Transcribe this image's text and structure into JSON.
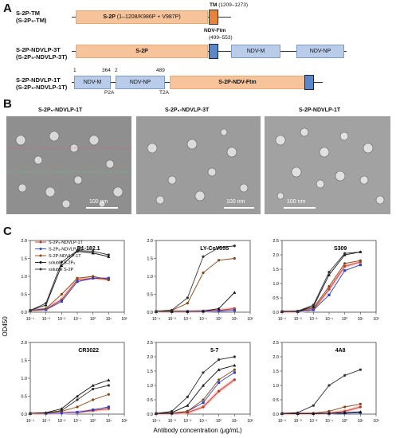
{
  "panelA": {
    "letter": "A",
    "c1": {
      "l1": "S-2P-TM",
      "l2": "(S-2P₅-TM)",
      "s2p": "S-2P",
      "s2p_detail": "(1–1208/K986P + V987P)",
      "tm": "TM",
      "tm_range": "(1209–1273)"
    },
    "c2": {
      "l1": "S-2P-NDVLP-3T",
      "l2": "(S-2P₅-NDVLP-3T)",
      "s2p": "S-2P",
      "ftm": "NDV-Ftm",
      "ftm_range": "(499–553)",
      "m": "NDV-M",
      "np": "NDV-NP"
    },
    "c3": {
      "l1": "S-2P-NDVLP-1T",
      "l2": "(S-2P₅-NDVLP-1T)",
      "n1": "1",
      "n364": "364",
      "n2": "2",
      "n489": "489",
      "m": "NDV-M",
      "np": "NDV-NP",
      "s2pftm": "S-2P-NDV-Ftm",
      "p2a": "P2A",
      "t2a": "T2A"
    }
  },
  "panelB": {
    "letter": "B",
    "titles": [
      "S-2P₅-NDVLP-1T",
      "S-2P₅-NDVLP-3T",
      "S-2P-NDVLP-1T"
    ],
    "scale": "100 nm"
  },
  "panelC": {
    "letter": "C",
    "ylabel": "OD450",
    "xlabel": "Antibody concentration (μg/mL)",
    "legend": [
      "S-2P₅-NDVLP-1T",
      "S-2P₅-NDVLP-3T",
      "S-2P-NDVLP-1T",
      "soluble S-2P₅",
      "soluble S-2P"
    ],
    "colors": {
      "red": "#c0392b",
      "blue": "#2b3fd1",
      "brown": "#8b4513",
      "black1": "#111111",
      "black2": "#333333",
      "shade": "#f6c9c9"
    }
  },
  "chart_data": [
    {
      "type": "line",
      "title": "B1-182.1",
      "x": [
        0.0001,
        0.001,
        0.01,
        0.1,
        1,
        10
      ],
      "ylim": [
        0,
        2
      ],
      "yticks": [
        "0.0",
        "0.5",
        "1.0",
        "1.5",
        "2.0"
      ],
      "xticks": [
        "10⁻⁴",
        "10⁻³",
        "10⁻²",
        "10⁻¹",
        "10⁰",
        "10¹",
        "10²"
      ],
      "series": [
        {
          "name": "S-2P₅-NDVLP-1T",
          "color": "red",
          "values": [
            0.05,
            0.08,
            0.35,
            0.9,
            0.95,
            0.92
          ]
        },
        {
          "name": "S-2P₅-NDVLP-3T",
          "color": "blue",
          "values": [
            0.05,
            0.07,
            0.3,
            0.85,
            0.95,
            0.95
          ]
        },
        {
          "name": "S-2P-NDVLP-1T",
          "color": "brown",
          "values": [
            0.05,
            0.1,
            0.5,
            0.95,
            1.0,
            0.9
          ]
        },
        {
          "name": "soluble S-2P₅",
          "color": "black1",
          "values": [
            0.05,
            0.2,
            1.3,
            1.7,
            1.65,
            1.55
          ]
        },
        {
          "name": "soluble S-2P",
          "color": "black2",
          "values": [
            0.05,
            0.25,
            1.4,
            1.72,
            1.7,
            1.6
          ]
        }
      ]
    },
    {
      "type": "line",
      "title": "LY-CoV555",
      "x": [
        0.0001,
        0.001,
        0.01,
        0.1,
        1,
        10
      ],
      "ylim": [
        0,
        2
      ],
      "yticks": [
        "0.0",
        "0.5",
        "1.0",
        "1.5",
        "2.0"
      ],
      "xticks": [
        "10⁻⁴",
        "10⁻³",
        "10⁻²",
        "10⁻¹",
        "10⁰",
        "10¹",
        "10²"
      ],
      "series": [
        {
          "name": "S-2P₅-NDVLP-1T",
          "color": "red",
          "values": [
            0.02,
            0.02,
            0.02,
            0.03,
            0.05,
            0.1
          ]
        },
        {
          "name": "S-2P₅-NDVLP-3T",
          "color": "blue",
          "values": [
            0.02,
            0.02,
            0.02,
            0.02,
            0.03,
            0.05
          ]
        },
        {
          "name": "S-2P-NDVLP-1T",
          "color": "brown",
          "values": [
            0.02,
            0.05,
            0.25,
            1.1,
            1.45,
            1.5
          ]
        },
        {
          "name": "soluble S-2P₅",
          "color": "black1",
          "values": [
            0.02,
            0.02,
            0.02,
            0.03,
            0.1,
            0.55
          ]
        },
        {
          "name": "soluble S-2P",
          "color": "black2",
          "values": [
            0.02,
            0.06,
            0.4,
            1.55,
            1.8,
            1.85
          ]
        }
      ]
    },
    {
      "type": "line",
      "title": "S309",
      "x": [
        0.0001,
        0.001,
        0.01,
        0.1,
        1,
        10
      ],
      "ylim": [
        0,
        2.5
      ],
      "yticks": [
        "0.0",
        "0.5",
        "1.0",
        "1.5",
        "2.0",
        "2.5"
      ],
      "xticks": [
        "10⁻⁴",
        "10⁻³",
        "10⁻²",
        "10⁻¹",
        "10⁰",
        "10¹",
        "10²"
      ],
      "series": [
        {
          "name": "S-2P₅-NDVLP-1T",
          "color": "red",
          "values": [
            0.02,
            0.02,
            0.1,
            0.8,
            1.6,
            1.75
          ]
        },
        {
          "name": "S-2P₅-NDVLP-3T",
          "color": "blue",
          "values": [
            0.02,
            0.02,
            0.08,
            0.6,
            1.45,
            1.65
          ]
        },
        {
          "name": "S-2P-NDVLP-1T",
          "color": "brown",
          "values": [
            0.02,
            0.03,
            0.15,
            0.9,
            1.7,
            1.8
          ]
        },
        {
          "name": "soluble S-2P₅",
          "color": "black1",
          "values": [
            0.02,
            0.03,
            0.2,
            1.3,
            2.0,
            2.1
          ]
        },
        {
          "name": "soluble S-2P",
          "color": "black2",
          "values": [
            0.02,
            0.04,
            0.25,
            1.4,
            2.05,
            2.1
          ]
        }
      ]
    },
    {
      "type": "line",
      "title": "CR3022",
      "x": [
        0.0001,
        0.001,
        0.01,
        0.1,
        1,
        10
      ],
      "ylim": [
        0,
        2
      ],
      "yticks": [
        "0.0",
        "0.5",
        "1.0",
        "1.5",
        "2.0"
      ],
      "xticks": [
        "10⁻⁴",
        "10⁻³",
        "10⁻²",
        "10⁻¹",
        "10⁰",
        "10¹",
        "10²"
      ],
      "series": [
        {
          "name": "S-2P₅-NDVLP-1T",
          "color": "red",
          "values": [
            0.02,
            0.02,
            0.03,
            0.05,
            0.1,
            0.15
          ]
        },
        {
          "name": "S-2P₅-NDVLP-3T",
          "color": "blue",
          "values": [
            0.02,
            0.02,
            0.03,
            0.05,
            0.12,
            0.2
          ]
        },
        {
          "name": "S-2P-NDVLP-1T",
          "color": "brown",
          "values": [
            0.02,
            0.03,
            0.08,
            0.2,
            0.4,
            0.55
          ]
        },
        {
          "name": "soluble S-2P₅",
          "color": "black1",
          "values": [
            0.02,
            0.04,
            0.15,
            0.5,
            0.8,
            0.95
          ]
        },
        {
          "name": "soluble S-2P",
          "color": "black2",
          "values": [
            0.02,
            0.03,
            0.1,
            0.4,
            0.7,
            0.8
          ]
        }
      ]
    },
    {
      "type": "line",
      "title": "5-7",
      "x": [
        0.0001,
        0.001,
        0.01,
        0.1,
        1,
        10
      ],
      "ylim": [
        0,
        2.5
      ],
      "yticks": [
        "0.0",
        "0.5",
        "1.0",
        "1.5",
        "2.0",
        "2.5"
      ],
      "xticks": [
        "10⁻⁴",
        "10⁻³",
        "10⁻²",
        "10⁻¹",
        "10⁰",
        "10¹",
        "10²"
      ],
      "series": [
        {
          "name": "S-2P₅-NDVLP-1T",
          "color": "red",
          "values": [
            0.02,
            0.02,
            0.05,
            0.25,
            0.8,
            1.2
          ]
        },
        {
          "name": "S-2P₅-NDVLP-3T",
          "color": "blue",
          "values": [
            0.02,
            0.02,
            0.1,
            0.4,
            1.1,
            1.45
          ]
        },
        {
          "name": "S-2P-NDVLP-1T",
          "color": "brown",
          "values": [
            0.02,
            0.03,
            0.1,
            0.5,
            1.2,
            1.55
          ]
        },
        {
          "name": "soluble S-2P₅",
          "color": "black1",
          "values": [
            0.02,
            0.05,
            0.3,
            1.0,
            1.55,
            1.7
          ]
        },
        {
          "name": "soluble S-2P",
          "color": "black2",
          "values": [
            0.02,
            0.1,
            0.6,
            1.45,
            1.9,
            2.0
          ]
        }
      ]
    },
    {
      "type": "line",
      "title": "4A8",
      "x": [
        0.0001,
        0.001,
        0.01,
        0.1,
        1,
        10
      ],
      "ylim": [
        0,
        2.5
      ],
      "yticks": [
        "0.0",
        "0.5",
        "1.0",
        "1.5",
        "2.0",
        "2.5"
      ],
      "xticks": [
        "10⁻⁴",
        "10⁻³",
        "10⁻²",
        "10⁻¹",
        "10⁰",
        "10¹",
        "10²"
      ],
      "series": [
        {
          "name": "S-2P₅-NDVLP-1T",
          "color": "red",
          "values": [
            0.02,
            0.02,
            0.02,
            0.03,
            0.1,
            0.25
          ]
        },
        {
          "name": "S-2P₅-NDVLP-3T",
          "color": "blue",
          "values": [
            0.02,
            0.02,
            0.02,
            0.02,
            0.03,
            0.05
          ]
        },
        {
          "name": "S-2P-NDVLP-1T",
          "color": "brown",
          "values": [
            0.02,
            0.02,
            0.03,
            0.1,
            0.25,
            0.35
          ]
        },
        {
          "name": "soluble S-2P₅",
          "color": "black1",
          "values": [
            0.02,
            0.02,
            0.02,
            0.03,
            0.05,
            0.08
          ]
        },
        {
          "name": "soluble S-2P",
          "color": "black2",
          "values": [
            0.02,
            0.05,
            0.3,
            1.0,
            1.35,
            1.55
          ]
        }
      ]
    }
  ]
}
